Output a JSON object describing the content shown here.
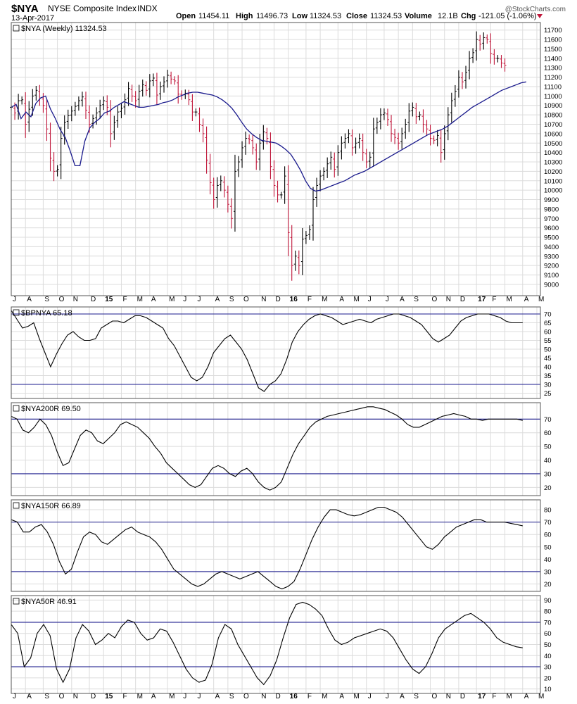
{
  "header": {
    "symbol": "$NYA",
    "name": "NYSE Composite Index",
    "exchange": "INDX",
    "date": "13-Apr-2017",
    "open_label": "Open",
    "open": "11454.11",
    "high_label": "High",
    "high": "11496.73",
    "low_label": "Low",
    "low": "11324.53",
    "close_label": "Close",
    "close": "11324.53",
    "volume_label": "Volume",
    "volume": "12.1B",
    "chg_label": "Chg",
    "chg": "-121.05 (-1.06%)",
    "watermark": "@StockCharts.com"
  },
  "colors": {
    "up_bar": "#000000",
    "down_bar": "#c0163a",
    "moving_average": "#1a1a8c",
    "reference_line": "#1a1a8c",
    "indicator_line": "#000000",
    "grid": "#dcdcdc",
    "panel_border": "#555555"
  },
  "chart_data": [
    {
      "type": "line",
      "title": "$NYA (Weekly) 11324.53",
      "series": [
        {
          "values": [
            10880,
            10910,
            10760,
            10830,
            10780,
            10920,
            10980,
            11000,
            10860,
            10760,
            10640,
            10560,
            10420,
            10260,
            10260,
            10520,
            10660,
            10720,
            10760,
            10820,
            10840,
            10880,
            10910,
            10940,
            10920,
            10900,
            10880,
            10880,
            10890,
            10900,
            10910,
            10930,
            10940,
            10960,
            10990,
            11010,
            11030,
            11040,
            11040,
            11030,
            11020,
            11010,
            10990,
            10960,
            10920,
            10870,
            10800,
            10720,
            10650,
            10600,
            10560,
            10530,
            10520,
            10510,
            10500,
            10470,
            10430,
            10380,
            10300,
            10210,
            10100,
            10020,
            9990,
            10000,
            10020,
            10040,
            10060,
            10080,
            10100,
            10130,
            10160,
            10180,
            10200,
            10230,
            10260,
            10290,
            10320,
            10350,
            10380,
            10410,
            10440,
            10470,
            10500,
            10530,
            10560,
            10590,
            10610,
            10630,
            10650,
            10680,
            10720,
            10760,
            10800,
            10840,
            10880,
            10910,
            10940,
            10970,
            11000,
            11030,
            11060,
            11080,
            11100,
            11120,
            11140,
            11150
          ]
        }
      ],
      "y_ticks": [
        9000,
        9100,
        9200,
        9300,
        9400,
        9500,
        9600,
        9700,
        9800,
        9900,
        10000,
        10100,
        10200,
        10300,
        10400,
        10500,
        10600,
        10700,
        10800,
        10900,
        11000,
        11100,
        11200,
        11300,
        11400,
        11500,
        11600,
        11700
      ],
      "ylim": [
        8880,
        11780
      ]
    },
    {
      "type": "line",
      "title": "$BPNYA 65.18",
      "series": [
        {
          "values": [
            72,
            67,
            62,
            63,
            65,
            56,
            48,
            40,
            47,
            53,
            58,
            60,
            57,
            55,
            55,
            56,
            62,
            64,
            66,
            66,
            65,
            67,
            69,
            69,
            68,
            66,
            64,
            62,
            56,
            52,
            46,
            40,
            34,
            32,
            34,
            40,
            48,
            52,
            56,
            58,
            54,
            50,
            44,
            36,
            28,
            26,
            30,
            32,
            36,
            44,
            54,
            60,
            64,
            67,
            69,
            70,
            69,
            68,
            66,
            64,
            65,
            66,
            67,
            66,
            65,
            67,
            68,
            69,
            70,
            70,
            69,
            68,
            66,
            64,
            60,
            56,
            54,
            56,
            58,
            62,
            66,
            68,
            69,
            70,
            70,
            70,
            69,
            68,
            66,
            65,
            65,
            65
          ]
        }
      ],
      "y_ticks": [
        25,
        30,
        35,
        40,
        45,
        50,
        55,
        60,
        65,
        70
      ],
      "ylim": [
        22,
        74
      ],
      "reference_lines": [
        30,
        70
      ]
    },
    {
      "type": "line",
      "title": "$NYA200R 69.50",
      "series": [
        {
          "values": [
            72,
            70,
            62,
            60,
            64,
            70,
            66,
            58,
            46,
            36,
            38,
            48,
            58,
            62,
            60,
            54,
            52,
            56,
            60,
            66,
            68,
            66,
            64,
            60,
            56,
            50,
            45,
            38,
            34,
            30,
            26,
            22,
            20,
            22,
            28,
            34,
            36,
            34,
            30,
            28,
            32,
            34,
            30,
            24,
            20,
            18,
            20,
            24,
            34,
            44,
            52,
            58,
            64,
            68,
            70,
            72,
            73,
            74,
            75,
            76,
            77,
            78,
            79,
            79,
            78,
            77,
            75,
            73,
            70,
            66,
            64,
            64,
            66,
            68,
            70,
            72,
            73,
            74,
            73,
            72,
            70,
            70,
            69,
            70,
            70,
            70,
            70,
            70,
            70,
            69
          ]
        }
      ],
      "y_ticks": [
        20,
        30,
        40,
        50,
        60,
        70
      ],
      "ylim": [
        14,
        82
      ],
      "reference_lines": [
        30,
        70
      ]
    },
    {
      "type": "line",
      "title": "$NYA150R 66.89",
      "series": [
        {
          "values": [
            72,
            70,
            62,
            62,
            66,
            68,
            62,
            52,
            38,
            28,
            32,
            46,
            58,
            62,
            60,
            54,
            52,
            56,
            60,
            64,
            66,
            62,
            60,
            58,
            54,
            48,
            40,
            32,
            28,
            24,
            20,
            18,
            20,
            24,
            28,
            30,
            28,
            26,
            24,
            26,
            28,
            30,
            26,
            22,
            18,
            16,
            18,
            22,
            32,
            44,
            56,
            66,
            74,
            80,
            80,
            78,
            76,
            75,
            76,
            78,
            80,
            82,
            82,
            80,
            78,
            74,
            68,
            62,
            56,
            50,
            48,
            52,
            58,
            62,
            66,
            68,
            70,
            72,
            72,
            70,
            70,
            70,
            70,
            69,
            68,
            67
          ]
        }
      ],
      "y_ticks": [
        20,
        30,
        40,
        50,
        60,
        70,
        80
      ],
      "ylim": [
        14,
        88
      ],
      "reference_lines": [
        30,
        70
      ]
    },
    {
      "type": "line",
      "title": "$NYA50R 46.91",
      "series": [
        {
          "values": [
            68,
            60,
            30,
            38,
            60,
            68,
            58,
            28,
            16,
            28,
            56,
            68,
            62,
            50,
            54,
            60,
            56,
            66,
            72,
            70,
            60,
            54,
            56,
            64,
            62,
            52,
            40,
            28,
            20,
            16,
            18,
            32,
            56,
            68,
            64,
            50,
            40,
            30,
            20,
            14,
            22,
            36,
            56,
            74,
            86,
            88,
            86,
            82,
            76,
            64,
            54,
            50,
            52,
            56,
            58,
            60,
            62,
            64,
            62,
            56,
            46,
            36,
            28,
            24,
            30,
            42,
            56,
            64,
            68,
            72,
            76,
            78,
            74,
            70,
            64,
            56,
            52,
            50,
            48,
            47
          ]
        }
      ],
      "y_ticks": [
        10,
        20,
        30,
        40,
        50,
        60,
        70,
        80,
        90
      ],
      "ylim": [
        6,
        94
      ],
      "reference_lines": [
        30,
        70
      ]
    }
  ],
  "x_axis": {
    "labels": [
      {
        "text": "J",
        "week": 0,
        "bold": false
      },
      {
        "text": "A",
        "week": 4,
        "bold": false
      },
      {
        "text": "S",
        "week": 9,
        "bold": false
      },
      {
        "text": "O",
        "week": 13,
        "bold": false
      },
      {
        "text": "N",
        "week": 17,
        "bold": false
      },
      {
        "text": "D",
        "week": 22,
        "bold": false
      },
      {
        "text": "15",
        "week": 26,
        "bold": true
      },
      {
        "text": "F",
        "week": 31,
        "bold": false
      },
      {
        "text": "M",
        "week": 35,
        "bold": false
      },
      {
        "text": "A",
        "week": 39,
        "bold": false
      },
      {
        "text": "M",
        "week": 44,
        "bold": false
      },
      {
        "text": "J",
        "week": 48,
        "bold": false
      },
      {
        "text": "J",
        "week": 52,
        "bold": false
      },
      {
        "text": "A",
        "week": 57,
        "bold": false
      },
      {
        "text": "S",
        "week": 61,
        "bold": false
      },
      {
        "text": "O",
        "week": 65,
        "bold": false
      },
      {
        "text": "N",
        "week": 70,
        "bold": false
      },
      {
        "text": "D",
        "week": 74,
        "bold": false
      },
      {
        "text": "16",
        "week": 78,
        "bold": true
      },
      {
        "text": "F",
        "week": 83,
        "bold": false
      },
      {
        "text": "M",
        "week": 87,
        "bold": false
      },
      {
        "text": "A",
        "week": 92,
        "bold": false
      },
      {
        "text": "M",
        "week": 96,
        "bold": false
      },
      {
        "text": "J",
        "week": 100,
        "bold": false
      },
      {
        "text": "J",
        "week": 105,
        "bold": false
      },
      {
        "text": "A",
        "week": 109,
        "bold": false
      },
      {
        "text": "S",
        "week": 113,
        "bold": false
      },
      {
        "text": "O",
        "week": 118,
        "bold": false
      },
      {
        "text": "N",
        "week": 122,
        "bold": false
      },
      {
        "text": "D",
        "week": 126,
        "bold": false
      },
      {
        "text": "17",
        "week": 131,
        "bold": true
      },
      {
        "text": "F",
        "week": 135,
        "bold": false
      },
      {
        "text": "M",
        "week": 139,
        "bold": false
      },
      {
        "text": "A",
        "week": 144,
        "bold": false
      },
      {
        "text": "M",
        "week": 148,
        "bold": false
      }
    ]
  },
  "ohlc": {
    "closes": [
      10880,
      10820,
      10950,
      10960,
      10700,
      10860,
      11000,
      11060,
      10980,
      10900,
      10650,
      10340,
      10200,
      10220,
      10550,
      10720,
      10790,
      10840,
      10890,
      10950,
      10990,
      10850,
      10700,
      10760,
      10820,
      10900,
      10950,
      10880,
      10600,
      10720,
      10830,
      10870,
      10960,
      11080,
      11000,
      10950,
      11050,
      11120,
      11060,
      11160,
      11190,
      11010,
      11100,
      11150,
      11220,
      11180,
      11160,
      11020,
      11010,
      11030,
      10960,
      10830,
      10830,
      10700,
      10600,
      10320,
      10080,
      9900,
      10050,
      10100,
      10000,
      9850,
      9700,
      10200,
      10300,
      10450,
      10550,
      10540,
      10450,
      10300,
      10500,
      10620,
      10550,
      10250,
      10050,
      9950,
      9950,
      10150,
      9550,
      9200,
      9300,
      9200,
      9480,
      9520,
      9580,
      9900,
      10050,
      10150,
      10200,
      10280,
      10350,
      10220,
      10400,
      10500,
      10550,
      10600,
      10450,
      10500,
      10550,
      10400,
      10300,
      10350,
      10650,
      10720,
      10800,
      10820,
      10750,
      10600,
      10560,
      10500,
      10600,
      10700,
      10840,
      10880,
      10780,
      10800,
      10700,
      10650,
      10550,
      10530,
      10580,
      10400,
      10600,
      10800,
      10950,
      11050,
      11200,
      11150,
      11250,
      11400,
      11460,
      11600,
      11550,
      11620,
      11600,
      11450,
      11400,
      11400,
      11350,
      11324
    ]
  }
}
